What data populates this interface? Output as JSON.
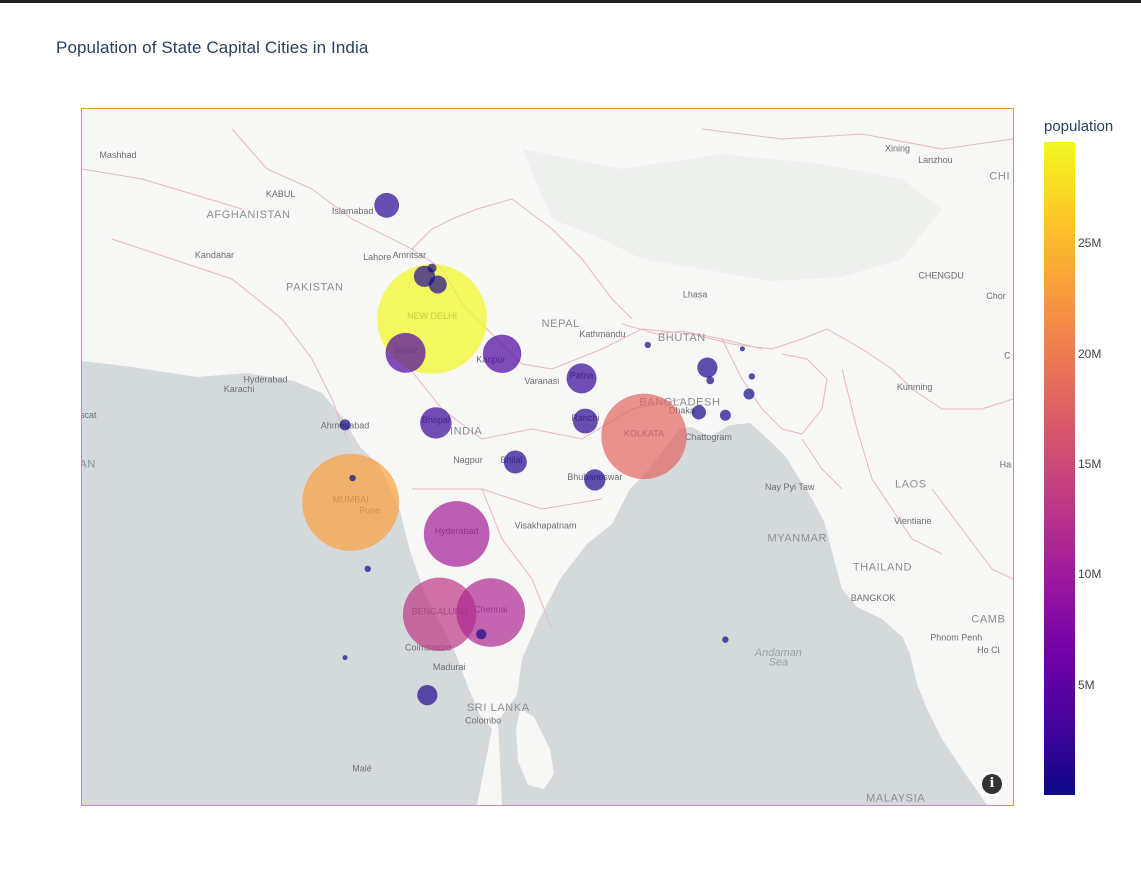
{
  "title": "Population of State Capital Cities in India",
  "colorbar": {
    "title": "population",
    "ticks": [
      {
        "label": "25M",
        "value": 25000000
      },
      {
        "label": "20M",
        "value": 20000000
      },
      {
        "label": "15M",
        "value": 15000000
      },
      {
        "label": "10M",
        "value": 10000000
      },
      {
        "label": "5M",
        "value": 5000000
      }
    ],
    "min": 0,
    "max": 29600000,
    "colorscale": [
      "#0d0887",
      "#46039f",
      "#7201a8",
      "#9c179e",
      "#bd3786",
      "#d8576b",
      "#ed7953",
      "#fb9f3a",
      "#fdca26",
      "#f0f921"
    ]
  },
  "map_extent": {
    "lon_min": 58.7,
    "lon_max": 107.9,
    "lat_min": 2.3,
    "lat_max": 38.5
  },
  "base_labels": [
    {
      "text": "Mashhad",
      "lon": 60.6,
      "lat": 36.3,
      "kind": "city"
    },
    {
      "text": "KABUL",
      "lon": 69.2,
      "lat": 34.5,
      "kind": "city"
    },
    {
      "text": "AFGHANISTAN",
      "lon": 67.5,
      "lat": 33.5,
      "kind": "country"
    },
    {
      "text": "Islamabad",
      "lon": 73.0,
      "lat": 33.7,
      "kind": "city"
    },
    {
      "text": "Kandahar",
      "lon": 65.7,
      "lat": 31.6,
      "kind": "city"
    },
    {
      "text": "Lahore",
      "lon": 74.3,
      "lat": 31.5,
      "kind": "city"
    },
    {
      "text": "Amritsar",
      "lon": 76.0,
      "lat": 31.6,
      "kind": "city"
    },
    {
      "text": "PAKISTAN",
      "lon": 71.0,
      "lat": 30.0,
      "kind": "country"
    },
    {
      "text": "NEW DELHI",
      "lon": 77.2,
      "lat": 28.6,
      "kind": "city"
    },
    {
      "text": "Jaipur",
      "lon": 75.8,
      "lat": 26.9,
      "kind": "city"
    },
    {
      "text": "Kanpur",
      "lon": 80.3,
      "lat": 26.4,
      "kind": "city"
    },
    {
      "text": "NEPAL",
      "lon": 84.0,
      "lat": 28.2,
      "kind": "country"
    },
    {
      "text": "Kathmandu",
      "lon": 86.2,
      "lat": 27.7,
      "kind": "city"
    },
    {
      "text": "BHUTAN",
      "lon": 90.4,
      "lat": 27.5,
      "kind": "country"
    },
    {
      "text": "Lhasa",
      "lon": 91.1,
      "lat": 29.65,
      "kind": "city"
    },
    {
      "text": "Hyderabad",
      "lon": 68.4,
      "lat": 25.4,
      "kind": "city"
    },
    {
      "text": "Karachi",
      "lon": 67.0,
      "lat": 24.9,
      "kind": "city"
    },
    {
      "text": "Varanasi",
      "lon": 83.0,
      "lat": 25.3,
      "kind": "city"
    },
    {
      "text": "Patna",
      "lon": 85.1,
      "lat": 25.6,
      "kind": "city"
    },
    {
      "text": "BANGLADESH",
      "lon": 90.3,
      "lat": 24.2,
      "kind": "country"
    },
    {
      "text": "Dhaka",
      "lon": 90.4,
      "lat": 23.8,
      "kind": "city"
    },
    {
      "text": "Kunming",
      "lon": 102.7,
      "lat": 25.0,
      "kind": "city"
    },
    {
      "text": "CHENGDU",
      "lon": 104.1,
      "lat": 30.6,
      "kind": "city"
    },
    {
      "text": "Ahmedabad",
      "lon": 72.6,
      "lat": 23.0,
      "kind": "city"
    },
    {
      "text": "Bhopal",
      "lon": 77.4,
      "lat": 23.3,
      "kind": "city"
    },
    {
      "text": "INDIA",
      "lon": 79.0,
      "lat": 22.7,
      "kind": "country"
    },
    {
      "text": "Ranchi",
      "lon": 85.3,
      "lat": 23.4,
      "kind": "city"
    },
    {
      "text": "KOLKATA",
      "lon": 88.4,
      "lat": 22.6,
      "kind": "city"
    },
    {
      "text": "Chattogram",
      "lon": 91.8,
      "lat": 22.4,
      "kind": "city"
    },
    {
      "text": "Nagpur",
      "lon": 79.1,
      "lat": 21.2,
      "kind": "city"
    },
    {
      "text": "Bhilai",
      "lon": 81.4,
      "lat": 21.2,
      "kind": "city"
    },
    {
      "text": "Bhubaneswar",
      "lon": 85.8,
      "lat": 20.3,
      "kind": "city"
    },
    {
      "text": "Nay Pyi Taw",
      "lon": 96.1,
      "lat": 19.75,
      "kind": "city"
    },
    {
      "text": "LAOS",
      "lon": 102.5,
      "lat": 19.9,
      "kind": "country"
    },
    {
      "text": "MUMBAI",
      "lon": 72.9,
      "lat": 19.1,
      "kind": "city"
    },
    {
      "text": "Pune",
      "lon": 73.9,
      "lat": 18.5,
      "kind": "city"
    },
    {
      "text": "Visakhapatnam",
      "lon": 83.2,
      "lat": 17.7,
      "kind": "city"
    },
    {
      "text": "Hyderabad",
      "lon": 78.5,
      "lat": 17.4,
      "kind": "city"
    },
    {
      "text": "Vientiane",
      "lon": 102.6,
      "lat": 17.95,
      "kind": "city"
    },
    {
      "text": "MYANMAR",
      "lon": 96.5,
      "lat": 17.0,
      "kind": "country"
    },
    {
      "text": "THAILAND",
      "lon": 101.0,
      "lat": 15.4,
      "kind": "country"
    },
    {
      "text": "BANGKOK",
      "lon": 100.5,
      "lat": 13.75,
      "kind": "city"
    },
    {
      "text": "BENGALURU",
      "lon": 77.6,
      "lat": 13.0,
      "kind": "city"
    },
    {
      "text": "Chennai",
      "lon": 80.3,
      "lat": 13.1,
      "kind": "city"
    },
    {
      "text": "Coimbatore",
      "lon": 77.0,
      "lat": 11.0,
      "kind": "city"
    },
    {
      "text": "Madurai",
      "lon": 78.1,
      "lat": 9.9,
      "kind": "city"
    },
    {
      "text": "Andaman",
      "lon": 95.5,
      "lat": 10.7,
      "kind": "sea"
    },
    {
      "text": "Sea",
      "lon": 95.5,
      "lat": 10.15,
      "kind": "sea"
    },
    {
      "text": "SRI LANKA",
      "lon": 80.7,
      "lat": 7.6,
      "kind": "country"
    },
    {
      "text": "Colombo",
      "lon": 79.9,
      "lat": 6.9,
      "kind": "city"
    },
    {
      "text": "Phnom Penh",
      "lon": 104.9,
      "lat": 11.55,
      "kind": "city"
    },
    {
      "text": "Xining",
      "lon": 101.8,
      "lat": 36.6,
      "kind": "city"
    },
    {
      "text": "Lanzhou",
      "lon": 103.8,
      "lat": 36.06,
      "kind": "city"
    },
    {
      "text": "MALAYSIA",
      "lon": 101.7,
      "lat": 2.5,
      "kind": "country"
    },
    {
      "text": "CHI",
      "lon": 107.2,
      "lat": 35.3,
      "kind": "country"
    },
    {
      "text": "Chor",
      "lon": 107.0,
      "lat": 29.6,
      "kind": "city"
    },
    {
      "text": "CAMB",
      "lon": 106.6,
      "lat": 12.55,
      "kind": "country"
    },
    {
      "text": "Ho Cl",
      "lon": 106.6,
      "lat": 10.85,
      "kind": "city"
    },
    {
      "text": "Ha",
      "lon": 107.5,
      "lat": 20.95,
      "kind": "city"
    },
    {
      "text": "C",
      "lon": 107.6,
      "lat": 26.6,
      "kind": "city"
    },
    {
      "text": "AN",
      "lon": 59.0,
      "lat": 20.95,
      "kind": "country"
    },
    {
      "text": "uscat",
      "lon": 58.9,
      "lat": 23.55,
      "kind": "city"
    },
    {
      "text": "Malé",
      "lon": 73.5,
      "lat": 4.2,
      "kind": "city"
    }
  ],
  "markers": [
    {
      "lon": 77.2,
      "lat": 28.6,
      "population": 29400000
    },
    {
      "lon": 72.9,
      "lat": 19.1,
      "population": 23000000
    },
    {
      "lon": 88.4,
      "lat": 22.6,
      "population": 17800000
    },
    {
      "lon": 77.6,
      "lat": 13.0,
      "population": 13200000
    },
    {
      "lon": 80.3,
      "lat": 13.1,
      "population": 11500000
    },
    {
      "lon": 78.5,
      "lat": 17.4,
      "population": 10500000
    },
    {
      "lon": 80.9,
      "lat": 26.85,
      "population": 3600000
    },
    {
      "lon": 75.8,
      "lat": 26.9,
      "population": 3900000
    },
    {
      "lon": 77.4,
      "lat": 23.3,
      "population": 2400000
    },
    {
      "lon": 85.1,
      "lat": 25.6,
      "population": 2200000
    },
    {
      "lon": 74.8,
      "lat": 34.1,
      "population": 1500000
    },
    {
      "lon": 81.6,
      "lat": 21.25,
      "population": 1300000
    },
    {
      "lon": 85.8,
      "lat": 20.3,
      "population": 1100000
    },
    {
      "lon": 85.3,
      "lat": 23.4,
      "population": 1500000
    },
    {
      "lon": 76.95,
      "lat": 8.5,
      "population": 1000000
    },
    {
      "lon": 76.8,
      "lat": 30.7,
      "population": 1100000
    },
    {
      "lon": 91.75,
      "lat": 26.15,
      "population": 1000000
    },
    {
      "lon": 77.2,
      "lat": 31.1,
      "population": 200000
    },
    {
      "lon": 77.5,
      "lat": 30.3,
      "population": 800000
    },
    {
      "lon": 91.3,
      "lat": 23.85,
      "population": 500000
    },
    {
      "lon": 92.7,
      "lat": 23.7,
      "population": 300000
    },
    {
      "lon": 93.95,
      "lat": 24.8,
      "population": 300000
    },
    {
      "lon": 94.1,
      "lat": 25.7,
      "population": 100000
    },
    {
      "lon": 93.6,
      "lat": 27.1,
      "population": 60000
    },
    {
      "lon": 91.9,
      "lat": 25.5,
      "population": 150000
    },
    {
      "lon": 88.6,
      "lat": 27.3,
      "population": 100000
    },
    {
      "lon": 72.6,
      "lat": 23.2,
      "population": 300000
    },
    {
      "lon": 73.0,
      "lat": 20.4,
      "population": 100000
    },
    {
      "lon": 73.8,
      "lat": 15.5,
      "population": 100000
    },
    {
      "lon": 79.8,
      "lat": 11.9,
      "population": 250000
    },
    {
      "lon": 92.7,
      "lat": 11.6,
      "population": 100000
    },
    {
      "lon": 72.6,
      "lat": 10.6,
      "population": 10000
    }
  ]
}
